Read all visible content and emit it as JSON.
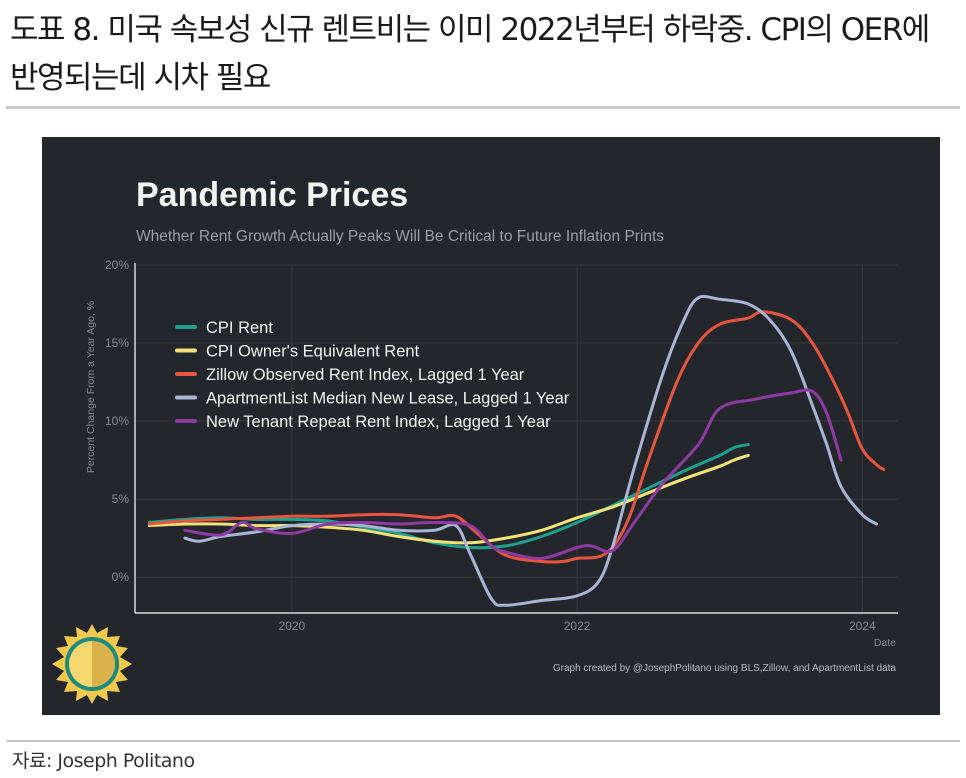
{
  "document": {
    "title": "도표 8. 미국 속보성 신규 렌트비는 이미 2022년부터 하락중. CPI의 OER에 반영되는데 시차 필요",
    "source": "자료: Joseph Politano"
  },
  "chart_data": {
    "type": "line",
    "title": "Pandemic Prices",
    "subtitle": "Whether Rent Growth Actually Peaks Will Be Critical to Future Inflation Prints",
    "xlabel": "Date",
    "ylabel": "Percent Change From a Year Ago, %",
    "xlim": [
      2018.9,
      2024.25
    ],
    "ylim": [
      -2.3,
      20
    ],
    "x_ticks": [
      2020,
      2022,
      2024
    ],
    "x_tick_labels": [
      "2020",
      "2022",
      "2024"
    ],
    "y_ticks": [
      0,
      5,
      10,
      15,
      20
    ],
    "y_tick_labels": [
      "0%",
      "5%",
      "10%",
      "15%",
      "20%"
    ],
    "grid": true,
    "legend_position": "top-left",
    "credit": "Graph created by @JosephPolitano using BLS,Zillow, and ApartmentList data",
    "series": [
      {
        "name": "CPI Rent",
        "color": "#1fa08e",
        "points": [
          [
            2019.0,
            3.5
          ],
          [
            2019.25,
            3.7
          ],
          [
            2019.5,
            3.8
          ],
          [
            2019.75,
            3.7
          ],
          [
            2020.0,
            3.7
          ],
          [
            2020.25,
            3.6
          ],
          [
            2020.5,
            3.2
          ],
          [
            2020.75,
            2.8
          ],
          [
            2021.0,
            2.2
          ],
          [
            2021.25,
            1.9
          ],
          [
            2021.5,
            2.0
          ],
          [
            2021.75,
            2.6
          ],
          [
            2022.0,
            3.5
          ],
          [
            2022.25,
            4.6
          ],
          [
            2022.5,
            5.7
          ],
          [
            2022.75,
            6.8
          ],
          [
            2023.0,
            7.8
          ],
          [
            2023.1,
            8.3
          ],
          [
            2023.2,
            8.5
          ]
        ]
      },
      {
        "name": "CPI Owner's Equivalent Rent",
        "color": "#f3e27a",
        "points": [
          [
            2019.0,
            3.3
          ],
          [
            2019.25,
            3.4
          ],
          [
            2019.5,
            3.4
          ],
          [
            2019.75,
            3.3
          ],
          [
            2020.0,
            3.3
          ],
          [
            2020.25,
            3.2
          ],
          [
            2020.5,
            3.0
          ],
          [
            2020.75,
            2.6
          ],
          [
            2021.0,
            2.3
          ],
          [
            2021.25,
            2.2
          ],
          [
            2021.5,
            2.5
          ],
          [
            2021.75,
            3.0
          ],
          [
            2022.0,
            3.8
          ],
          [
            2022.25,
            4.5
          ],
          [
            2022.5,
            5.4
          ],
          [
            2022.75,
            6.3
          ],
          [
            2023.0,
            7.1
          ],
          [
            2023.1,
            7.5
          ],
          [
            2023.2,
            7.8
          ]
        ]
      },
      {
        "name": "Zillow Observed Rent Index, Lagged 1 Year",
        "color": "#e8553f",
        "points": [
          [
            2019.0,
            3.4
          ],
          [
            2019.25,
            3.6
          ],
          [
            2019.5,
            3.7
          ],
          [
            2019.75,
            3.8
          ],
          [
            2020.0,
            3.9
          ],
          [
            2020.25,
            3.9
          ],
          [
            2020.5,
            4.0
          ],
          [
            2020.75,
            4.0
          ],
          [
            2021.0,
            3.8
          ],
          [
            2021.15,
            3.9
          ],
          [
            2021.3,
            2.8
          ],
          [
            2021.5,
            1.4
          ],
          [
            2021.75,
            1.0
          ],
          [
            2021.9,
            1.0
          ],
          [
            2022.0,
            1.2
          ],
          [
            2022.2,
            1.5
          ],
          [
            2022.35,
            3.5
          ],
          [
            2022.5,
            7.5
          ],
          [
            2022.7,
            12.5
          ],
          [
            2022.85,
            15.0
          ],
          [
            2023.0,
            16.2
          ],
          [
            2023.2,
            16.6
          ],
          [
            2023.3,
            17.0
          ],
          [
            2023.5,
            16.5
          ],
          [
            2023.65,
            15.0
          ],
          [
            2023.8,
            12.5
          ],
          [
            2023.9,
            10.5
          ],
          [
            2024.0,
            8.2
          ],
          [
            2024.1,
            7.2
          ],
          [
            2024.15,
            6.9
          ]
        ]
      },
      {
        "name": "ApartmentList Median New Lease, Lagged 1 Year",
        "color": "#a9b4d6",
        "points": [
          [
            2019.25,
            2.5
          ],
          [
            2019.35,
            2.3
          ],
          [
            2019.5,
            2.6
          ],
          [
            2019.75,
            2.9
          ],
          [
            2020.0,
            3.3
          ],
          [
            2020.25,
            3.4
          ],
          [
            2020.5,
            3.3
          ],
          [
            2020.75,
            3.0
          ],
          [
            2021.0,
            3.0
          ],
          [
            2021.15,
            3.3
          ],
          [
            2021.25,
            1.5
          ],
          [
            2021.4,
            -1.4
          ],
          [
            2021.5,
            -1.8
          ],
          [
            2021.75,
            -1.5
          ],
          [
            2022.0,
            -1.2
          ],
          [
            2022.15,
            -0.3
          ],
          [
            2022.25,
            2.0
          ],
          [
            2022.4,
            7.0
          ],
          [
            2022.6,
            13.0
          ],
          [
            2022.75,
            16.5
          ],
          [
            2022.85,
            17.9
          ],
          [
            2023.0,
            17.8
          ],
          [
            2023.2,
            17.5
          ],
          [
            2023.35,
            16.5
          ],
          [
            2023.5,
            14.5
          ],
          [
            2023.65,
            11.0
          ],
          [
            2023.75,
            8.5
          ],
          [
            2023.85,
            5.8
          ],
          [
            2024.0,
            4.0
          ],
          [
            2024.1,
            3.4
          ]
        ]
      },
      {
        "name": "New Tenant Repeat Rent Index, Lagged 1 Year",
        "color": "#8f3aa2",
        "points": [
          [
            2019.25,
            3.0
          ],
          [
            2019.5,
            2.7
          ],
          [
            2019.65,
            3.5
          ],
          [
            2019.75,
            3.1
          ],
          [
            2020.0,
            2.8
          ],
          [
            2020.25,
            3.4
          ],
          [
            2020.5,
            3.5
          ],
          [
            2020.75,
            3.4
          ],
          [
            2021.0,
            3.5
          ],
          [
            2021.25,
            3.3
          ],
          [
            2021.4,
            2.0
          ],
          [
            2021.5,
            1.6
          ],
          [
            2021.75,
            1.2
          ],
          [
            2022.0,
            1.9
          ],
          [
            2022.1,
            2.0
          ],
          [
            2022.25,
            1.7
          ],
          [
            2022.4,
            3.5
          ],
          [
            2022.6,
            6.0
          ],
          [
            2022.85,
            8.5
          ],
          [
            2023.0,
            10.8
          ],
          [
            2023.25,
            11.4
          ],
          [
            2023.5,
            11.8
          ],
          [
            2023.65,
            11.9
          ],
          [
            2023.75,
            10.5
          ],
          [
            2023.85,
            7.5
          ]
        ]
      }
    ]
  }
}
